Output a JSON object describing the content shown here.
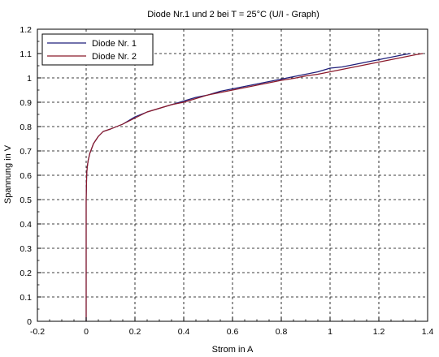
{
  "chart_data": {
    "type": "line",
    "title": "Diode Nr.1 und 2 bei T = 25°C (U/I - Graph)",
    "xlabel": "Strom in A",
    "ylabel": "Spannung in V",
    "xlim": [
      -0.2,
      1.4
    ],
    "ylim": [
      0,
      1.2
    ],
    "x_ticks": [
      "-0.2",
      "0",
      "0.2",
      "0.4",
      "0.6",
      "0.8",
      "1",
      "1.2",
      "1.4"
    ],
    "y_ticks": [
      "0",
      "0.1",
      "0.2",
      "0.3",
      "0.4",
      "0.5",
      "0.6",
      "0.7",
      "0.8",
      "0.9",
      "1",
      "1.1",
      "1.2"
    ],
    "grid": true,
    "legend_position": "top-left",
    "series": [
      {
        "name": "Diode Nr. 1",
        "color": "#1f1f7a",
        "x": [
          0,
          0,
          0,
          0.001,
          0.002,
          0.004,
          0.008,
          0.015,
          0.03,
          0.05,
          0.07,
          0.1,
          0.15,
          0.2,
          0.25,
          0.3,
          0.35,
          0.4,
          0.45,
          0.5,
          0.55,
          0.6,
          0.65,
          0.7,
          0.75,
          0.8,
          0.85,
          0.9,
          0.95,
          1.0,
          1.05,
          1.1,
          1.15,
          1.2,
          1.25,
          1.3,
          1.33
        ],
        "y": [
          0,
          0.3,
          0.5,
          0.55,
          0.6,
          0.63,
          0.66,
          0.69,
          0.73,
          0.76,
          0.78,
          0.79,
          0.81,
          0.84,
          0.86,
          0.875,
          0.89,
          0.905,
          0.92,
          0.93,
          0.945,
          0.955,
          0.965,
          0.975,
          0.985,
          0.995,
          1.005,
          1.015,
          1.025,
          1.04,
          1.045,
          1.055,
          1.065,
          1.075,
          1.085,
          1.095,
          1.1
        ]
      },
      {
        "name": "Diode Nr. 2",
        "color": "#8b1a2b",
        "x": [
          0,
          0,
          0,
          0.001,
          0.002,
          0.004,
          0.008,
          0.015,
          0.03,
          0.05,
          0.07,
          0.1,
          0.15,
          0.2,
          0.25,
          0.3,
          0.35,
          0.4,
          0.45,
          0.5,
          0.55,
          0.6,
          0.65,
          0.7,
          0.75,
          0.8,
          0.85,
          0.9,
          0.95,
          1.0,
          1.05,
          1.1,
          1.15,
          1.2,
          1.25,
          1.3,
          1.35,
          1.38
        ],
        "y": [
          0,
          0.3,
          0.5,
          0.55,
          0.6,
          0.63,
          0.66,
          0.69,
          0.73,
          0.76,
          0.78,
          0.79,
          0.81,
          0.835,
          0.86,
          0.875,
          0.89,
          0.9,
          0.915,
          0.93,
          0.94,
          0.95,
          0.96,
          0.97,
          0.98,
          0.99,
          0.998,
          1.008,
          1.015,
          1.025,
          1.035,
          1.045,
          1.055,
          1.065,
          1.075,
          1.085,
          1.095,
          1.1
        ]
      }
    ]
  }
}
